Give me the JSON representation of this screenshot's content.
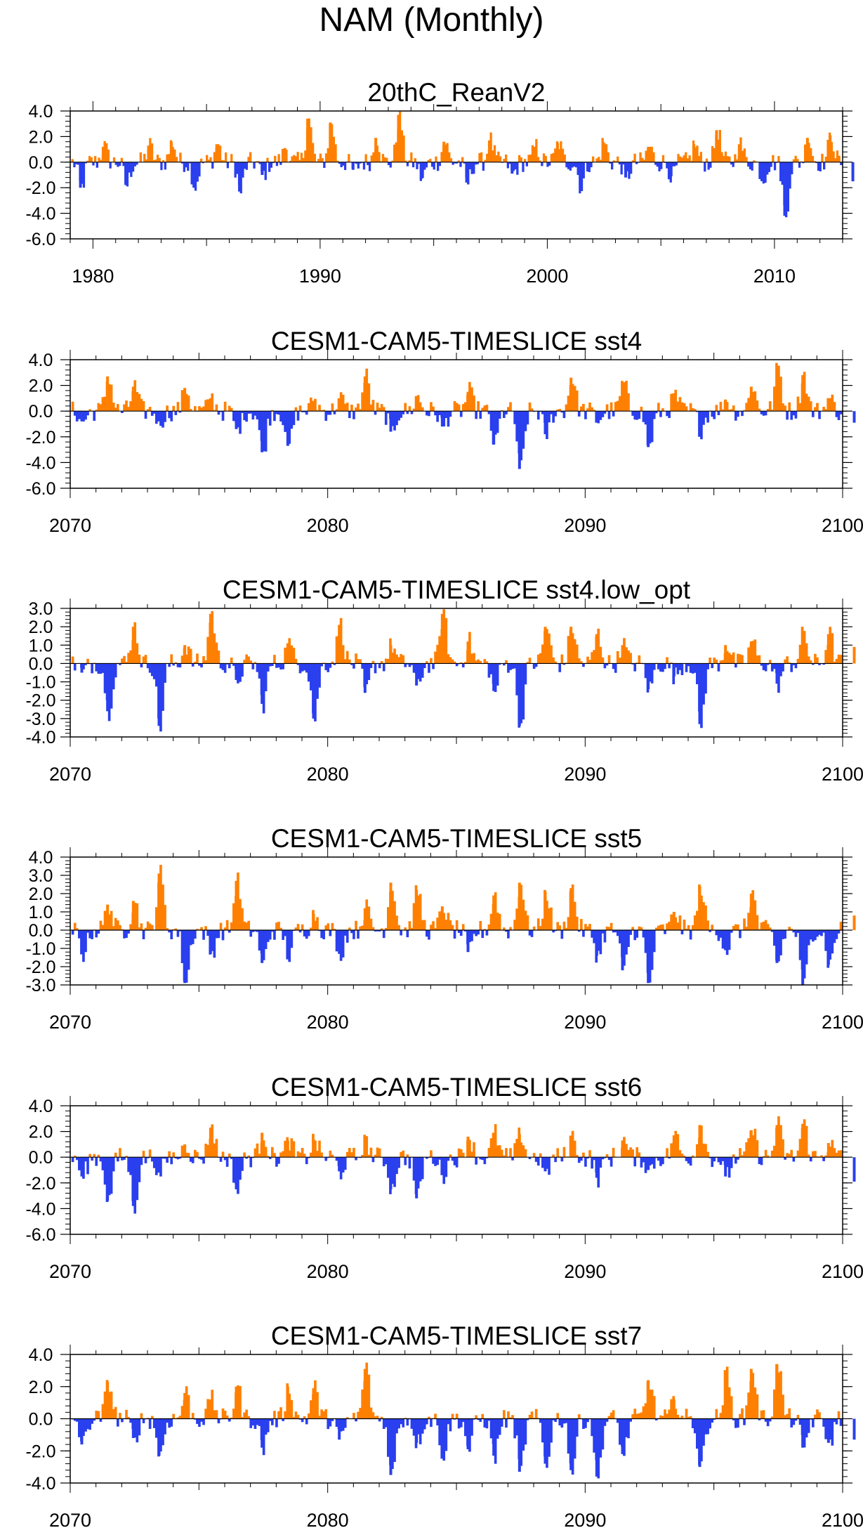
{
  "figure": {
    "title": "NAM (Monthly)"
  },
  "colors": {
    "positive": "#ff8000",
    "negative": "#2a3fee",
    "axis": "#000000"
  },
  "chart_data": [
    {
      "type": "area",
      "title": "20thC_ReanV2",
      "xlim": [
        1979,
        2013
      ],
      "x_ticks": [
        1980,
        1990,
        2000,
        2010
      ],
      "ylim": [
        -6.0,
        4.0
      ],
      "y_ticks": [
        4.0,
        2.0,
        0.0,
        -2.0,
        -4.0,
        -6.0
      ],
      "y_tick_labels": [
        "4.0",
        "2.0",
        "0.0",
        "-2.0",
        "-4.0",
        "-6.0"
      ],
      "series": [
        {
          "x": [
            1979,
            1980,
            1981,
            1982,
            1983,
            1984,
            1985,
            1986,
            1987,
            1988,
            1989,
            1990,
            1991,
            1992,
            1993,
            1994,
            1995,
            1996,
            1997,
            1998,
            1999,
            2000,
            2001,
            2002,
            2003,
            2004,
            2005,
            2006,
            2007,
            2008,
            2009,
            2010,
            2011,
            2012,
            2013
          ],
          "y": [
            -2.0,
            1.2,
            -1.8,
            1.3,
            1.6,
            -1.9,
            1.4,
            -2.3,
            -1.0,
            1.1,
            3.4,
            3.1,
            -0.6,
            1.9,
            3.7,
            -1.3,
            1.6,
            -1.6,
            1.7,
            -0.9,
            1.2,
            1.5,
            -2.0,
            1.6,
            -1.2,
            1.2,
            -1.1,
            1.4,
            2.5,
            1.4,
            -1.3,
            -4.2,
            1.9,
            2.1,
            -1.5
          ]
        }
      ]
    },
    {
      "type": "area",
      "title": "CESM1-CAM5-TIMESLICE sst4",
      "xlim": [
        2070,
        2100
      ],
      "x_ticks": [
        2070,
        2080,
        2090,
        2100
      ],
      "ylim": [
        -6.0,
        4.0
      ],
      "y_ticks": [
        4.0,
        2.0,
        0.0,
        -2.0,
        -4.0,
        -6.0
      ],
      "y_tick_labels": [
        "4.0",
        "2.0",
        "0.0",
        "-2.0",
        "-4.0",
        "-6.0"
      ],
      "series": [
        {
          "x": [
            2070,
            2071,
            2072,
            2073,
            2074,
            2075,
            2076,
            2077,
            2078,
            2079,
            2080,
            2081,
            2082,
            2083,
            2084,
            2085,
            2086,
            2087,
            2088,
            2089,
            2090,
            2091,
            2092,
            2093,
            2094,
            2095,
            2096,
            2097,
            2098,
            2099,
            2100
          ],
          "y": [
            -0.8,
            2.7,
            1.9,
            -0.8,
            1.8,
            1.0,
            -1.4,
            -3.2,
            -2.7,
            0.8,
            1.0,
            2.7,
            -1.6,
            1.1,
            -1.2,
            1.5,
            -2.6,
            -4.5,
            -1.8,
            2.6,
            -0.7,
            2.2,
            -2.8,
            1.2,
            -1.4,
            0.9,
            1.9,
            3.5,
            2.8,
            1.0,
            -0.9
          ]
        }
      ]
    },
    {
      "type": "area",
      "title": "CESM1-CAM5-TIMESLICE sst4.low_opt",
      "xlim": [
        2070,
        2100
      ],
      "x_ticks": [
        2070,
        2080,
        2090,
        2100
      ],
      "ylim": [
        -4.0,
        3.0
      ],
      "y_ticks": [
        3.0,
        2.0,
        1.0,
        0.0,
        -1.0,
        -2.0,
        -3.0,
        -4.0
      ],
      "y_tick_labels": [
        "3.0",
        "2.0",
        "1.0",
        "0.0",
        "-1.0",
        "-2.0",
        "-3.0",
        "-4.0"
      ],
      "series": [
        {
          "x": [
            2070,
            2071,
            2072,
            2073,
            2074,
            2075,
            2076,
            2077,
            2078,
            2079,
            2080,
            2081,
            2082,
            2083,
            2084,
            2085,
            2086,
            2087,
            2088,
            2089,
            2090,
            2091,
            2092,
            2093,
            2094,
            2095,
            2096,
            2097,
            2098,
            2099,
            2100
          ],
          "y": [
            -0.5,
            -2.6,
            2.0,
            -3.4,
            1.0,
            2.7,
            -0.9,
            -2.2,
            1.1,
            -3.0,
            2.1,
            -1.6,
            1.0,
            -1.2,
            2.7,
            1.2,
            -1.5,
            -3.4,
            2.0,
            2.0,
            1.6,
            1.0,
            -1.4,
            -0.7,
            -3.3,
            1.0,
            1.2,
            -1.1,
            1.7,
            1.6,
            0.9
          ]
        }
      ]
    },
    {
      "type": "area",
      "title": "CESM1-CAM5-TIMESLICE sst5",
      "xlim": [
        2070,
        2100
      ],
      "x_ticks": [
        2070,
        2080,
        2090,
        2100
      ],
      "ylim": [
        -3.0,
        4.0
      ],
      "y_ticks": [
        4.0,
        3.0,
        2.0,
        1.0,
        0.0,
        -1.0,
        -2.0,
        -3.0
      ],
      "y_tick_labels": [
        "4.0",
        "3.0",
        "2.0",
        "1.0",
        "0.0",
        "-1.0",
        "-2.0",
        "-3.0"
      ],
      "series": [
        {
          "x": [
            2070,
            2071,
            2072,
            2073,
            2074,
            2075,
            2076,
            2077,
            2078,
            2079,
            2080,
            2081,
            2082,
            2083,
            2084,
            2085,
            2086,
            2087,
            2088,
            2089,
            2090,
            2091,
            2092,
            2093,
            2094,
            2095,
            2096,
            2097,
            2098,
            2099,
            2100
          ],
          "y": [
            -1.3,
            1.4,
            1.6,
            3.1,
            -2.9,
            -1.3,
            2.7,
            -1.8,
            -1.4,
            0.9,
            -1.3,
            1.2,
            2.6,
            2.2,
            1.3,
            -1.2,
            1.9,
            2.6,
            2.1,
            2.3,
            -1.4,
            -2.2,
            -2.9,
            1.0,
            2.4,
            -1.1,
            2.0,
            -1.8,
            -3.0,
            -1.9,
            0.8
          ]
        }
      ]
    },
    {
      "type": "area",
      "title": "CESM1-CAM5-TIMESLICE sst6",
      "xlim": [
        2070,
        2100
      ],
      "x_ticks": [
        2070,
        2080,
        2090,
        2100
      ],
      "ylim": [
        -6.0,
        4.0
      ],
      "y_ticks": [
        4.0,
        2.0,
        0.0,
        -2.0,
        -4.0,
        -6.0
      ],
      "y_tick_labels": [
        "4.0",
        "2.0",
        "0.0",
        "-2.0",
        "-4.0",
        "-6.0"
      ],
      "series": [
        {
          "x": [
            2070,
            2071,
            2072,
            2073,
            2074,
            2075,
            2076,
            2077,
            2078,
            2079,
            2080,
            2081,
            2082,
            2083,
            2084,
            2085,
            2086,
            2087,
            2088,
            2089,
            2090,
            2091,
            2092,
            2093,
            2094,
            2095,
            2096,
            2097,
            2098,
            2099,
            2100
          ],
          "y": [
            -1.5,
            -3.4,
            -3.8,
            -1.2,
            1.0,
            2.3,
            -2.5,
            1.9,
            1.3,
            1.4,
            -1.1,
            1.2,
            -2.5,
            -3.2,
            -1.3,
            1.6,
            1.9,
            1.8,
            -1.1,
            1.6,
            -1.6,
            1.3,
            -1.0,
            1.7,
            2.5,
            -1.5,
            2.1,
            2.5,
            2.6,
            1.1,
            -1.9
          ]
        }
      ]
    },
    {
      "type": "area",
      "title": "CESM1-CAM5-TIMESLICE sst7",
      "xlim": [
        2070,
        2100
      ],
      "x_ticks": [
        2070,
        2080,
        2090,
        2100
      ],
      "ylim": [
        -4.0,
        4.0
      ],
      "y_ticks": [
        4.0,
        2.0,
        0.0,
        -2.0,
        -4.0
      ],
      "y_tick_labels": [
        "4.0",
        "2.0",
        "0.0",
        "-2.0",
        "-4.0"
      ],
      "series": [
        {
          "x": [
            2070,
            2071,
            2072,
            2073,
            2074,
            2075,
            2076,
            2077,
            2078,
            2079,
            2080,
            2081,
            2082,
            2083,
            2084,
            2085,
            2086,
            2087,
            2088,
            2089,
            2090,
            2091,
            2092,
            2093,
            2094,
            2095,
            2096,
            2097,
            2098,
            2099,
            2100
          ],
          "y": [
            -1.6,
            2.3,
            -1.2,
            -2.3,
            1.6,
            1.2,
            2.0,
            -1.8,
            2.0,
            1.9,
            -1.3,
            3.1,
            -3.5,
            -1.5,
            -2.3,
            -1.9,
            -2.3,
            -3.3,
            -2.8,
            -3.2,
            -3.6,
            -2.2,
            2.4,
            1.2,
            -3.0,
            2.8,
            3.1,
            3.4,
            -1.8,
            -1.5,
            -1.3
          ]
        }
      ]
    }
  ]
}
